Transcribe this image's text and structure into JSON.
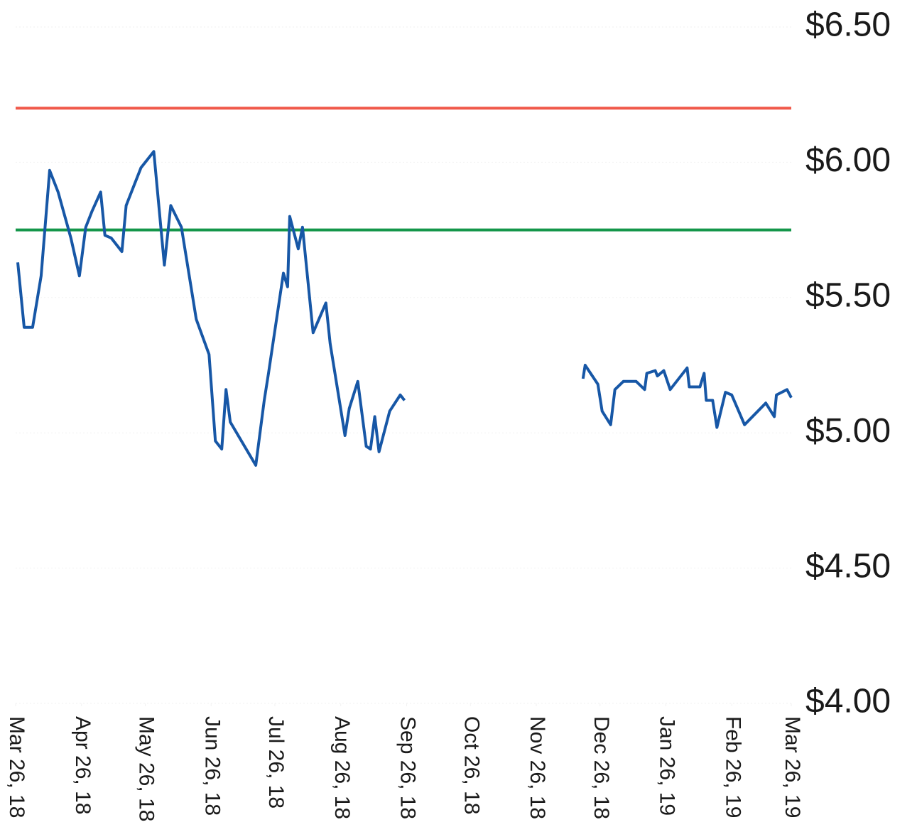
{
  "chart_data": {
    "type": "line",
    "color": "#1757a6",
    "grid": true,
    "reference_lines": [
      {
        "value": 6.2,
        "color": "#f0594a"
      },
      {
        "value": 5.75,
        "color": "#14964a"
      }
    ],
    "xlim": [
      "2018-03-26",
      "2019-03-26"
    ],
    "xticks": [
      {
        "value": "2018-03-26",
        "label": "Mar 26, 18"
      },
      {
        "value": "2018-04-26",
        "label": "Apr 26, 18"
      },
      {
        "value": "2018-05-26",
        "label": "May 26, 18"
      },
      {
        "value": "2018-06-26",
        "label": "Jun 26, 18"
      },
      {
        "value": "2018-07-26",
        "label": "Jul 26, 18"
      },
      {
        "value": "2018-08-26",
        "label": "Aug 26, 18"
      },
      {
        "value": "2018-09-26",
        "label": "Sep 26, 18"
      },
      {
        "value": "2018-10-26",
        "label": "Oct 26, 18"
      },
      {
        "value": "2018-11-26",
        "label": "Nov 26, 18"
      },
      {
        "value": "2018-12-26",
        "label": "Dec 26, 18"
      },
      {
        "value": "2019-01-26",
        "label": "Jan 26, 19"
      },
      {
        "value": "2019-02-26",
        "label": "Feb 26, 19"
      },
      {
        "value": "2019-03-26",
        "label": "Mar 26, 19"
      }
    ],
    "ylim": [
      4.0,
      6.5
    ],
    "yticks": [
      {
        "value": 4.0,
        "label": "$4.00"
      },
      {
        "value": 4.5,
        "label": "$4.50"
      },
      {
        "value": 5.0,
        "label": "$5.00"
      },
      {
        "value": 5.5,
        "label": "$5.50"
      },
      {
        "value": 6.0,
        "label": "$6.00"
      },
      {
        "value": 6.5,
        "label": "$6.50"
      }
    ],
    "x": [
      "2018-03-27",
      "2018-03-30",
      "2018-04-03",
      "2018-04-07",
      "2018-04-11",
      "2018-04-15",
      "2018-04-21",
      "2018-04-25",
      "2018-04-28",
      "2018-05-01",
      "2018-05-05",
      "2018-05-07",
      "2018-05-10",
      "2018-05-15",
      "2018-05-17",
      "2018-05-21",
      "2018-05-24",
      "2018-05-30",
      "2018-06-04",
      "2018-06-07",
      "2018-06-12",
      "2018-06-19",
      "2018-06-25",
      "2018-06-28",
      "2018-07-01",
      "2018-07-03",
      "2018-07-05",
      "2018-07-17",
      "2018-07-21",
      "2018-07-23",
      "2018-07-30",
      "2018-08-01",
      "2018-08-02",
      "2018-08-06",
      "2018-08-08",
      "2018-08-13",
      "2018-08-19",
      "2018-08-21",
      "2018-08-28",
      "2018-08-30",
      "2018-09-03",
      "2018-09-07",
      "2018-09-09",
      "2018-09-11",
      "2018-09-13",
      "2018-09-18",
      "2018-09-23",
      "2018-09-25",
      "2018-11-01",
      "2018-12-18",
      "2018-12-19",
      "2018-12-25",
      "2018-12-27",
      "2018-12-31",
      "2019-01-02",
      "2019-01-06",
      "2019-01-12",
      "2019-01-16",
      "2019-01-17",
      "2019-01-21",
      "2019-01-22",
      "2019-01-25",
      "2019-01-28",
      "2019-02-05",
      "2019-02-06",
      "2019-02-11",
      "2019-02-13",
      "2019-02-14",
      "2019-02-17",
      "2019-02-19",
      "2019-02-23",
      "2019-02-26",
      "2019-03-04",
      "2019-03-14",
      "2019-03-18",
      "2019-03-19",
      "2019-03-24",
      "2019-03-26"
    ],
    "values": [
      5.63,
      5.39,
      5.39,
      5.58,
      5.97,
      5.89,
      5.72,
      5.58,
      5.76,
      5.82,
      5.89,
      5.73,
      5.72,
      5.67,
      5.84,
      5.92,
      5.98,
      6.04,
      5.62,
      5.84,
      5.76,
      5.42,
      5.29,
      4.97,
      4.94,
      5.16,
      5.04,
      4.88,
      5.12,
      5.22,
      5.59,
      5.54,
      5.8,
      5.68,
      5.76,
      5.37,
      5.48,
      5.33,
      4.99,
      5.09,
      5.19,
      4.95,
      4.94,
      5.06,
      4.93,
      5.08,
      5.14,
      5.12,
      null,
      5.2,
      5.25,
      5.18,
      5.08,
      5.03,
      5.16,
      5.19,
      5.19,
      5.16,
      5.22,
      5.23,
      5.21,
      5.23,
      5.16,
      5.24,
      5.17,
      5.17,
      5.22,
      5.12,
      5.12,
      5.02,
      5.15,
      5.14,
      5.03,
      5.11,
      5.06,
      5.14,
      5.16,
      5.13
    ]
  }
}
